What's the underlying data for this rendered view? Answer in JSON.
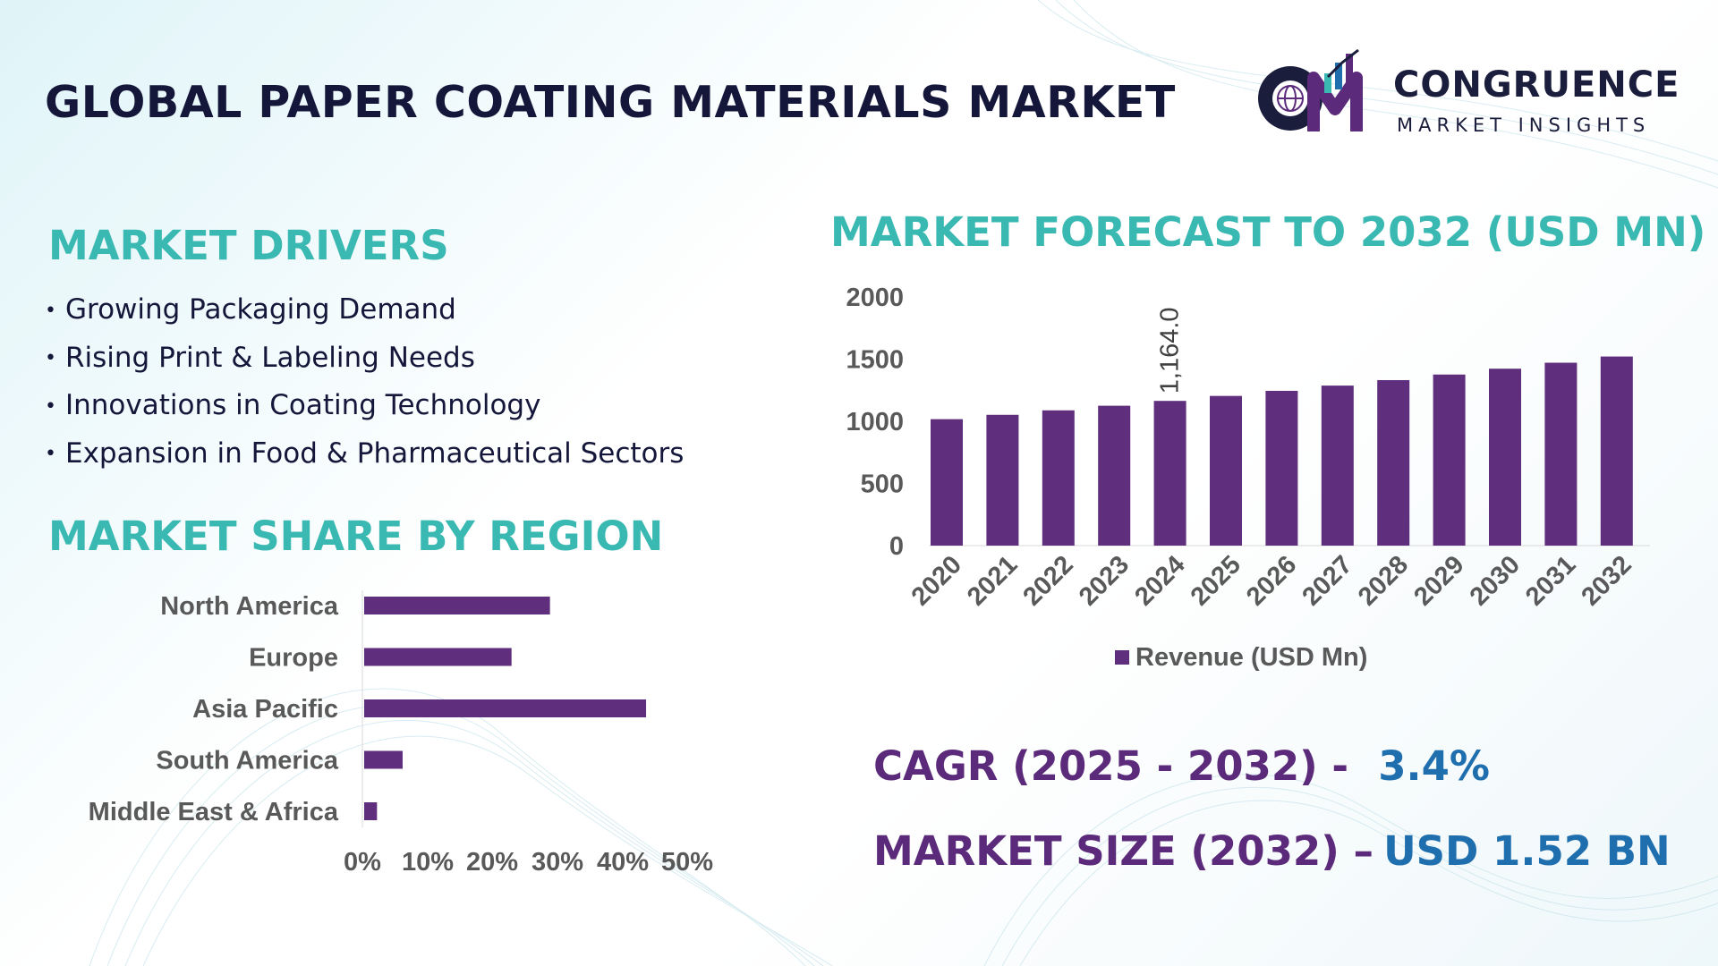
{
  "title": "GLOBAL PAPER COATING MATERIALS MARKET",
  "logo": {
    "name": "CONGRUENCE",
    "tagline": "MARKET INSIGHTS",
    "icon": "globe-bar-chart-logo-icon"
  },
  "drivers": {
    "title": "MARKET DRIVERS",
    "items": [
      "Growing Packaging Demand",
      "Rising Print & Labeling Needs",
      "Innovations in Coating Technology",
      "Expansion in Food & Pharmaceutical Sectors"
    ]
  },
  "region": {
    "title": "MARKET SHARE BY REGION"
  },
  "forecast": {
    "title": "MARKET FORECAST TO 2032 (USD MN)"
  },
  "kpis": {
    "cagr_label": "CAGR (2025 - 2032) -",
    "cagr_value": "3.4%",
    "size_label": "MARKET SIZE (2032) –",
    "size_value": "USD 1.52 BN"
  },
  "colors": {
    "bar": "#5f2e7c",
    "accent_teal": "#3ab8b2",
    "kpi_label": "#5b2a7a",
    "kpi_value": "#1f6fae",
    "title_dark": "#14163a"
  },
  "chart_data": [
    {
      "type": "bar",
      "orientation": "horizontal",
      "categories": [
        "North America",
        "Europe",
        "Asia Pacific",
        "South America",
        "Middle East & Africa"
      ],
      "values": [
        29,
        23,
        44,
        6,
        2
      ],
      "value_unit": "%",
      "xlim": [
        0,
        50
      ],
      "xticks": [
        "0%",
        "10%",
        "20%",
        "30%",
        "40%",
        "50%"
      ],
      "grid": false
    },
    {
      "type": "bar",
      "categories": [
        "2020",
        "2021",
        "2022",
        "2023",
        "2024",
        "2025",
        "2026",
        "2027",
        "2028",
        "2029",
        "2030",
        "2031",
        "2032"
      ],
      "series": [
        {
          "name": "Revenue (USD Mn)",
          "values": [
            1017,
            1052,
            1088,
            1125,
            1164,
            1204,
            1245,
            1287,
            1331,
            1376,
            1423,
            1471,
            1521
          ]
        }
      ],
      "ylim": [
        0,
        2000
      ],
      "yticks": [
        "0",
        "500",
        "1000",
        "1500",
        "2000"
      ],
      "data_labels": [
        {
          "category": "2024",
          "text": "1,164.0"
        }
      ],
      "legend": "bottom",
      "grid": false
    }
  ]
}
